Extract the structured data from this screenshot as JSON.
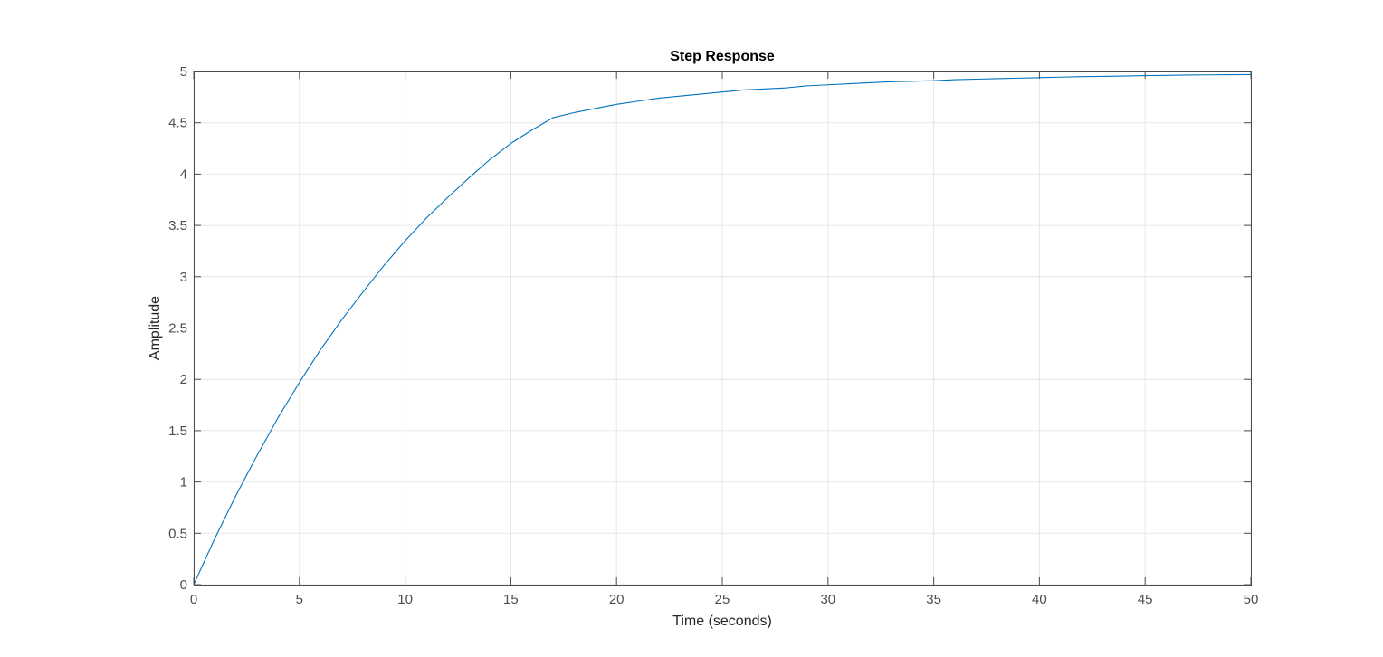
{
  "chart_data": {
    "type": "line",
    "title": "Step Response",
    "xlabel": "Time (seconds)",
    "ylabel": "Amplitude",
    "xlim": [
      0,
      50
    ],
    "ylim": [
      0,
      5
    ],
    "xticks": [
      0,
      5,
      10,
      15,
      20,
      25,
      30,
      35,
      40,
      45,
      50
    ],
    "yticks": [
      0,
      0.5,
      1,
      1.5,
      2,
      2.5,
      3,
      3.5,
      4,
      4.5,
      5
    ],
    "xtick_labels": [
      "0",
      "5",
      "10",
      "15",
      "20",
      "25",
      "30",
      "35",
      "40",
      "45",
      "50"
    ],
    "ytick_labels": [
      "0",
      "0.5",
      "1",
      "1.5",
      "2",
      "2.5",
      "3",
      "3.5",
      "4",
      "4.5",
      "5"
    ],
    "grid": true,
    "steady_state_line": {
      "y": 5,
      "color": "#000000",
      "style": "dotted"
    },
    "series": [
      {
        "color": "#0072bd",
        "x": [
          0,
          1,
          2,
          3,
          4,
          5,
          6,
          7,
          8,
          9,
          10,
          11,
          12,
          13,
          14,
          15,
          16,
          17,
          18,
          19,
          20,
          21,
          22,
          23,
          24,
          25,
          26,
          27,
          28,
          29,
          30,
          31,
          32,
          33,
          34,
          35,
          36,
          37,
          38,
          39,
          40,
          41,
          42,
          43,
          44,
          45,
          46,
          47,
          48,
          49,
          50
        ],
        "values": [
          0,
          0.45,
          0.87,
          1.26,
          1.63,
          1.97,
          2.29,
          2.58,
          2.85,
          3.11,
          3.35,
          3.57,
          3.77,
          3.96,
          4.14,
          4.3,
          4.43,
          4.55,
          4.6,
          4.64,
          4.68,
          4.71,
          4.74,
          4.76,
          4.78,
          4.8,
          4.82,
          4.83,
          4.84,
          4.86,
          4.87,
          4.88,
          4.89,
          4.9,
          4.905,
          4.91,
          4.92,
          4.925,
          4.93,
          4.935,
          4.94,
          4.945,
          4.95,
          4.952,
          4.955,
          4.96,
          4.962,
          4.965,
          4.967,
          4.969,
          4.97
        ]
      }
    ]
  }
}
